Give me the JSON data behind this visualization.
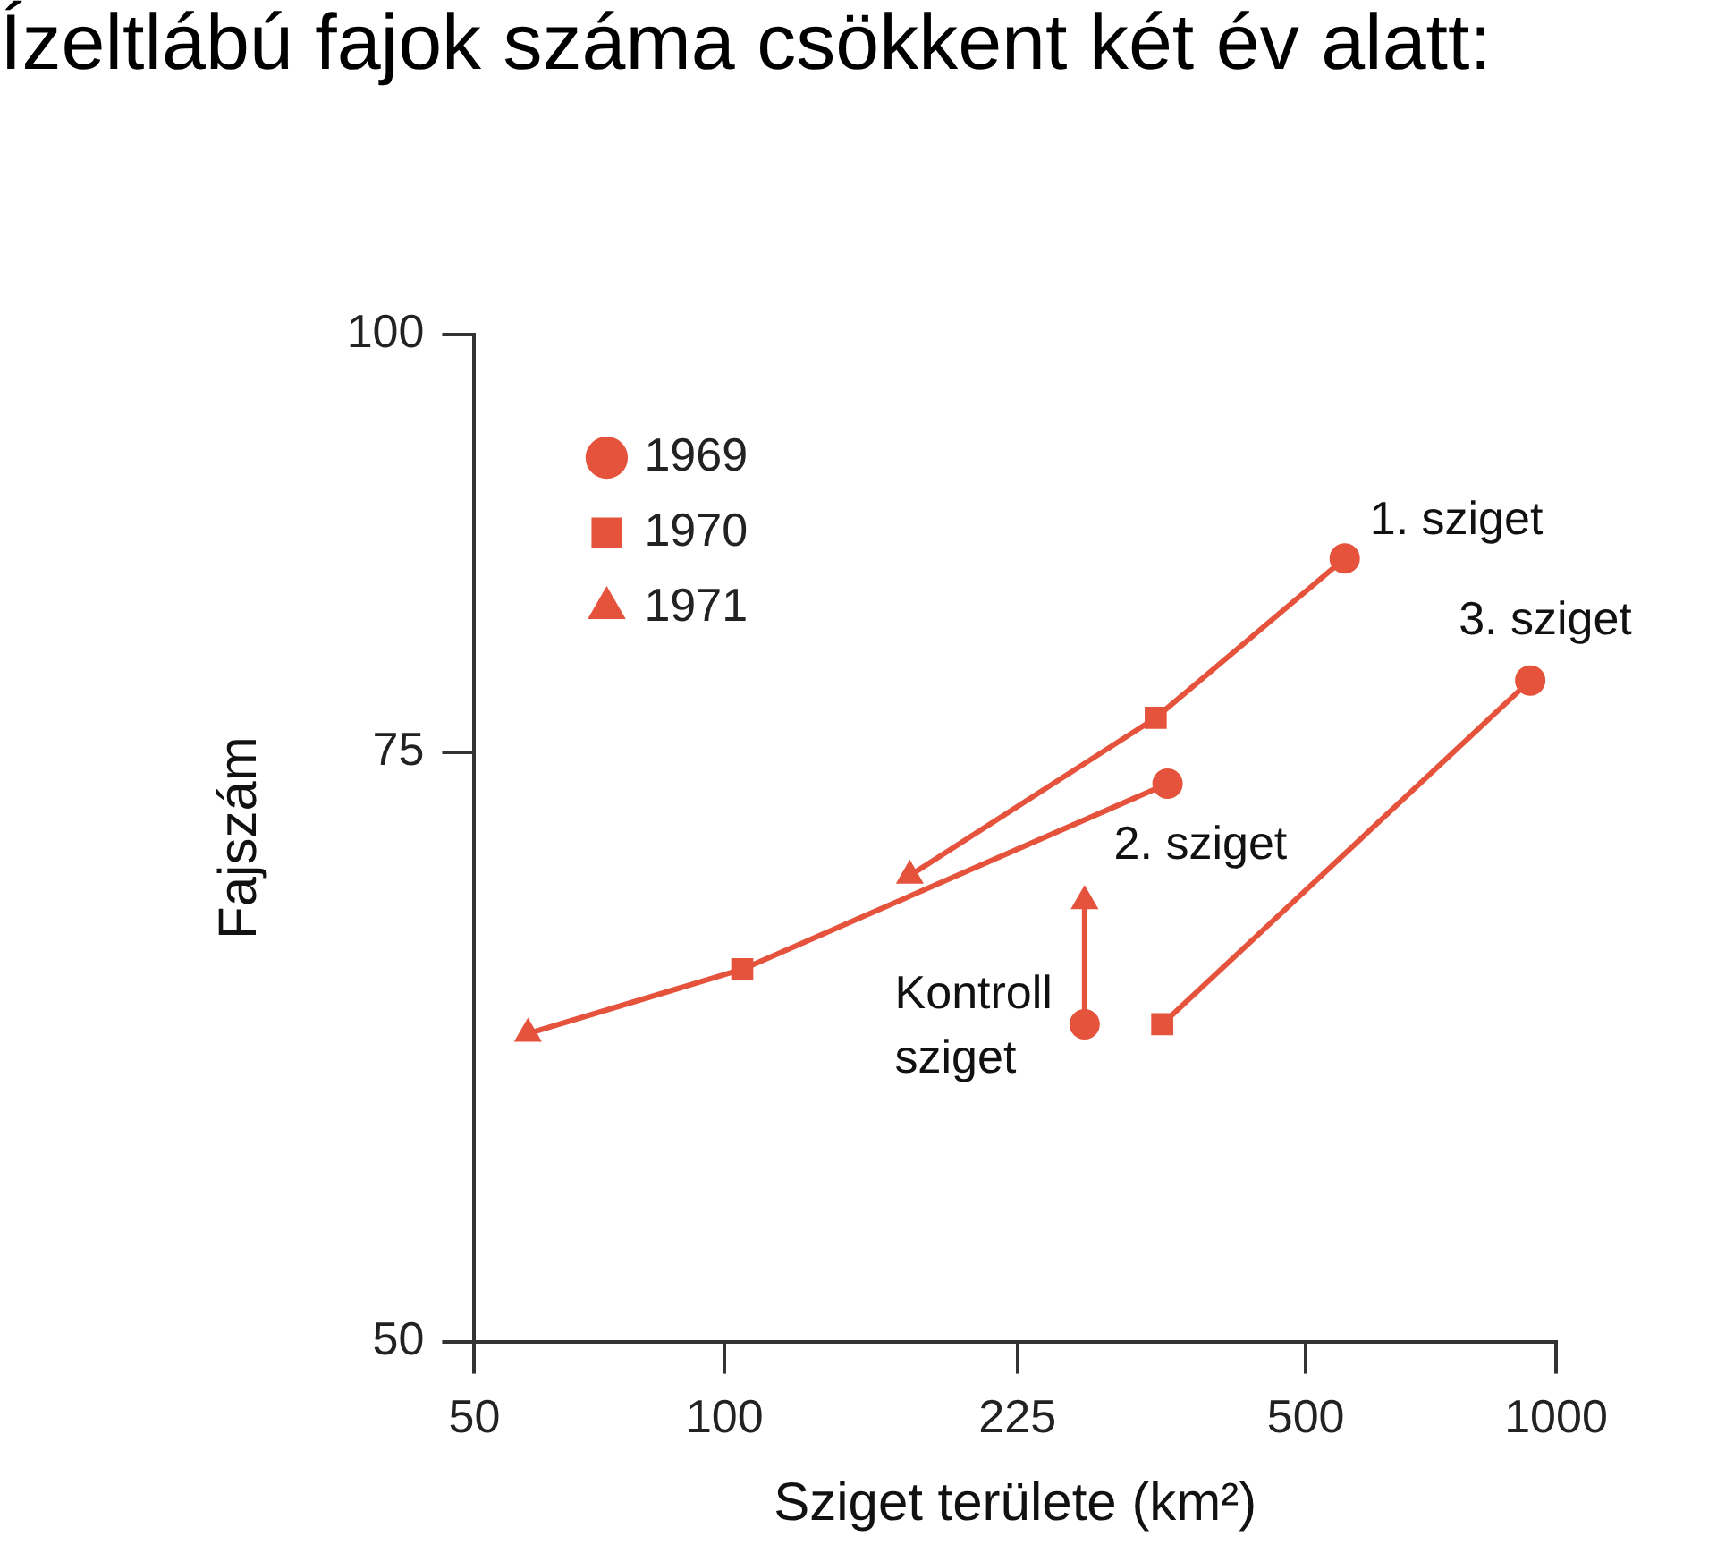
{
  "chart_data": {
    "type": "scatter",
    "title": "Ízeltlábú fajok száma csökkent két év alatt:",
    "xlabel": "Sziget területe (km²)",
    "ylabel": "Fajszám",
    "log": "xy",
    "xlim": [
      50,
      1000
    ],
    "xticks": [
      50,
      100,
      225,
      500,
      1000
    ],
    "ylim": [
      50,
      100
    ],
    "yticks": [
      50,
      75,
      100
    ],
    "grid": false,
    "legend": "top left",
    "series": [
      {
        "name": "1969",
        "type": "scatter",
        "marker": "circle",
        "color": "#e5533c",
        "x": [
          557,
          341,
          931,
          271
        ],
        "values": [
          85.7,
          73.4,
          78.8,
          62.2
        ]
      },
      {
        "name": "1970",
        "type": "scatter",
        "marker": "square",
        "color": "#e5533c",
        "x": [
          330,
          105,
          336
        ],
        "values": [
          76.8,
          64.6,
          62.2
        ]
      },
      {
        "name": "1971",
        "type": "scatter",
        "marker": "triangle",
        "color": "#e5533c",
        "x": [
          167,
          58,
          271
        ],
        "values": [
          68.9,
          61.8,
          67.7
        ]
      },
      {
        "type": "line",
        "marker": "none",
        "color": "#e5533c",
        "x": [
          557,
          330,
          167
        ],
        "values": [
          85.7,
          76.8,
          68.9
        ]
      },
      {
        "type": "line",
        "marker": "none",
        "color": "#e5533c",
        "x": [
          341,
          105,
          58
        ],
        "values": [
          73.4,
          64.6,
          61.8
        ]
      },
      {
        "type": "line",
        "marker": "none",
        "color": "#e5533c",
        "x": [
          931,
          336
        ],
        "values": [
          78.8,
          62.2
        ]
      },
      {
        "type": "line",
        "marker": "none",
        "color": "#e5533c",
        "x": [
          271,
          271
        ],
        "values": [
          62.2,
          67.7
        ]
      }
    ],
    "annotations": [
      {
        "text": "1. sziget",
        "x": 557,
        "y": 85.7
      },
      {
        "text": "3. sziget",
        "x": 931,
        "y": 78.8
      },
      {
        "text": "2. sziget",
        "x": 341,
        "y": 73.4
      },
      {
        "text": "Kontroll sziget",
        "x": 271,
        "y": 62.2
      }
    ]
  }
}
